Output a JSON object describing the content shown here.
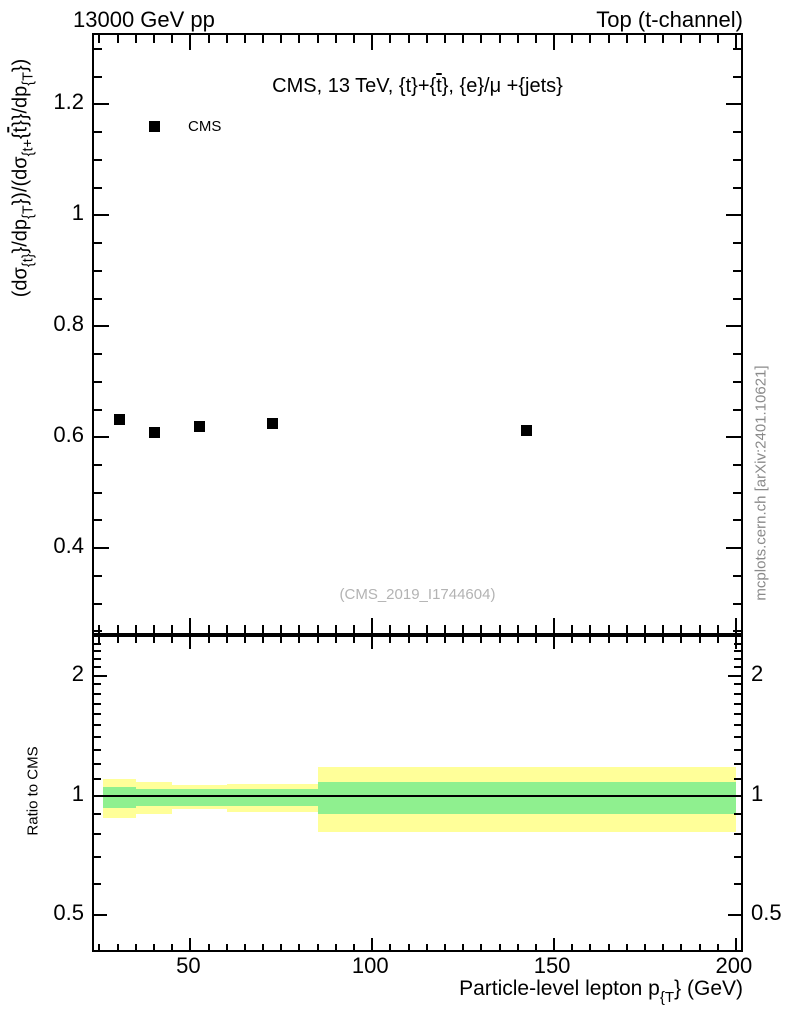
{
  "header": {
    "left": "13000 GeV pp",
    "right": "Top (t-channel)"
  },
  "watermark": "(CMS_2019_I1744604)",
  "side_note": "mcplots.cern.ch [arXiv:2401.10621]",
  "colors": {
    "band_outer": "#ffff99",
    "band_inner": "#8ff08f",
    "marker": "#000000",
    "watermark_gray": "#b3b3b3",
    "note_gray": "#8a8a8a"
  },
  "chart_data": [
    {
      "type": "scatter",
      "panel": "main",
      "title_segments": [
        {
          "t": "CMS, 13 TeV, {t}+{"
        },
        {
          "t": "t",
          "ov": true
        },
        {
          "t": "}, {e}/μ +{jets}"
        }
      ],
      "legend": [
        {
          "label": "CMS",
          "marker": "filled-square",
          "color": "#000000"
        }
      ],
      "series": [
        {
          "name": "CMS",
          "x": [
            30.5,
            40,
            52.5,
            72.5,
            142.5
          ],
          "y": [
            0.632,
            0.608,
            0.619,
            0.625,
            0.613
          ]
        }
      ],
      "bin_edges": [
        26,
        35,
        45,
        60,
        85,
        200
      ],
      "xlim": [
        23.5,
        202.5
      ],
      "ylim": [
        0.24,
        1.325
      ],
      "xticks": [
        50,
        100,
        150,
        200
      ],
      "x_minor_step": 5,
      "yticks": [
        0.4,
        0.6,
        0.8,
        1,
        1.2
      ],
      "y_minor_step": 0.05,
      "ylabel_segments": [
        {
          "t": "(dσ"
        },
        {
          "t": "{t}",
          "sub": true
        },
        {
          "t": "}/dp"
        },
        {
          "t": "{T",
          "sub": true
        },
        {
          "t": "})/(dσ"
        },
        {
          "t": "{t+",
          "sub": true
        },
        {
          "t": "{"
        },
        {
          "t": "t",
          "ov": true
        },
        {
          "t": "}}/dp"
        },
        {
          "t": "{T",
          "sub": true
        },
        {
          "t": "})"
        }
      ]
    },
    {
      "type": "band",
      "panel": "ratio",
      "ylabel": "Ratio to CMS",
      "xlabel_segments": [
        {
          "t": "Particle-level lepton p"
        },
        {
          "t": "{T",
          "sub": true
        },
        {
          "t": "} (GeV)"
        }
      ],
      "yscale": "log",
      "xlim": [
        23.5,
        202.5
      ],
      "ylim": [
        0.4,
        2.5
      ],
      "yticks": [
        0.5,
        1,
        2
      ],
      "y_minor": [
        0.6,
        0.7,
        0.8,
        0.9,
        1.1,
        1.2,
        1.3,
        1.4,
        1.5,
        1.6,
        1.7,
        1.8,
        1.9,
        2.1,
        2.2,
        2.3,
        2.4
      ],
      "xticks": [
        50,
        100,
        150,
        200
      ],
      "x_minor_step": 5,
      "reference_line": 1,
      "bins": [
        {
          "x0": 26,
          "x1": 35,
          "outer_lo": 0.88,
          "outer_hi": 1.1,
          "inner_lo": 0.93,
          "inner_hi": 1.05
        },
        {
          "x0": 35,
          "x1": 45,
          "outer_lo": 0.9,
          "outer_hi": 1.08,
          "inner_lo": 0.94,
          "inner_hi": 1.04
        },
        {
          "x0": 45,
          "x1": 60,
          "outer_lo": 0.925,
          "outer_hi": 1.06,
          "inner_lo": 0.94,
          "inner_hi": 1.04
        },
        {
          "x0": 60,
          "x1": 85,
          "outer_lo": 0.91,
          "outer_hi": 1.07,
          "inner_lo": 0.94,
          "inner_hi": 1.04
        },
        {
          "x0": 85,
          "x1": 200,
          "outer_lo": 0.81,
          "outer_hi": 1.18,
          "inner_lo": 0.9,
          "inner_hi": 1.08
        }
      ]
    }
  ]
}
